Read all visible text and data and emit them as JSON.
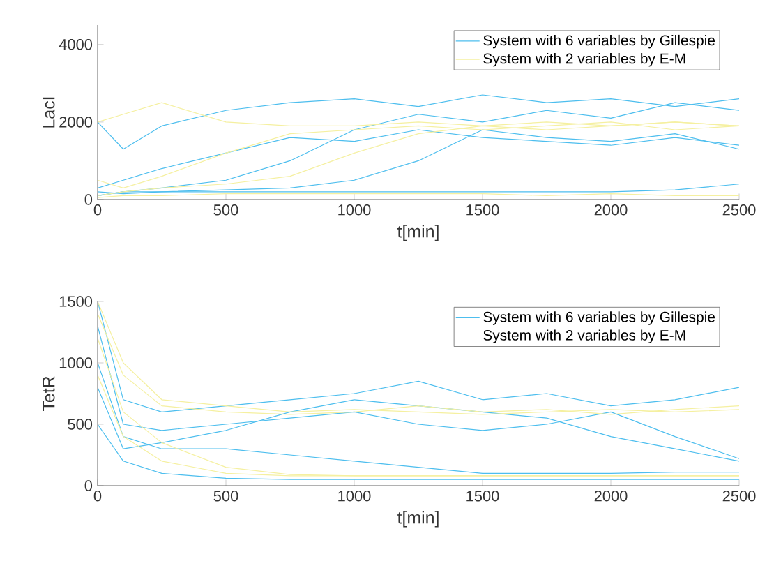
{
  "chart_data": [
    {
      "type": "line",
      "xlabel": "t[min]",
      "ylabel": "LacI",
      "xlim": [
        0,
        2500
      ],
      "ylim": [
        0,
        4500
      ],
      "xticks": [
        0,
        500,
        1000,
        1500,
        2000,
        2500
      ],
      "yticks": [
        0,
        2000,
        4000
      ],
      "legend": "top right",
      "grid": false,
      "x": [
        0,
        100,
        250,
        500,
        750,
        1000,
        1250,
        1500,
        1750,
        2000,
        2250,
        2500
      ],
      "series": [
        {
          "name": "System with 6 variables by Gillespie",
          "color": "#4dbeee",
          "values": [
            2000,
            1300,
            1900,
            2300,
            2500,
            2600,
            2400,
            2700,
            2500,
            2600,
            2400,
            2600
          ]
        },
        {
          "color": "#4dbeee",
          "values": [
            300,
            500,
            800,
            1200,
            1600,
            1500,
            1800,
            1600,
            1500,
            1400,
            1600,
            1400
          ]
        },
        {
          "color": "#4dbeee",
          "values": [
            100,
            200,
            300,
            500,
            1000,
            1800,
            2200,
            2000,
            2300,
            2100,
            2500,
            2300
          ]
        },
        {
          "color": "#4dbeee",
          "values": [
            200,
            150,
            200,
            250,
            300,
            500,
            1000,
            1800,
            1600,
            1500,
            1700,
            1300
          ]
        },
        {
          "color": "#4dbeee",
          "values": [
            100,
            200,
            200,
            200,
            200,
            200,
            200,
            200,
            200,
            200,
            250,
            400
          ]
        },
        {
          "name": "System with 2 variables by E-M",
          "color": "#f5f0a0",
          "values": [
            2000,
            2200,
            2500,
            2000,
            1900,
            1900,
            2000,
            1900,
            2000,
            1900,
            2000,
            1900
          ]
        },
        {
          "color": "#f5f0a0",
          "values": [
            500,
            300,
            600,
            1200,
            1700,
            1800,
            1900,
            1800,
            1900,
            2000,
            1800,
            1900
          ]
        },
        {
          "color": "#f5f0a0",
          "values": [
            100,
            200,
            300,
            400,
            600,
            1200,
            1700,
            1900,
            1800,
            1900,
            2000,
            1900
          ]
        },
        {
          "color": "#f5f0a0",
          "values": [
            50,
            100,
            100,
            150,
            150,
            150,
            150,
            150,
            100,
            150,
            100,
            100
          ]
        }
      ]
    },
    {
      "type": "line",
      "xlabel": "t[min]",
      "ylabel": "TetR",
      "xlim": [
        0,
        2500
      ],
      "ylim": [
        0,
        1500
      ],
      "xticks": [
        0,
        500,
        1000,
        1500,
        2000,
        2500
      ],
      "yticks": [
        0,
        500,
        1000,
        1500
      ],
      "legend": "top right",
      "grid": false,
      "x": [
        0,
        100,
        250,
        500,
        750,
        1000,
        1250,
        1500,
        1750,
        2000,
        2250,
        2500
      ],
      "series": [
        {
          "name": "System with 6 variables by Gillespie",
          "color": "#4dbeee",
          "values": [
            1500,
            700,
            600,
            650,
            700,
            750,
            850,
            700,
            750,
            650,
            700,
            800
          ]
        },
        {
          "color": "#4dbeee",
          "values": [
            1300,
            500,
            450,
            500,
            550,
            600,
            500,
            450,
            500,
            600,
            400,
            220
          ]
        },
        {
          "color": "#4dbeee",
          "values": [
            1000,
            400,
            300,
            300,
            250,
            200,
            150,
            100,
            100,
            100,
            110,
            110
          ]
        },
        {
          "color": "#4dbeee",
          "values": [
            800,
            300,
            350,
            450,
            600,
            700,
            650,
            600,
            550,
            400,
            300,
            200
          ]
        },
        {
          "color": "#4dbeee",
          "values": [
            500,
            200,
            100,
            60,
            50,
            50,
            50,
            50,
            50,
            50,
            50,
            50
          ]
        },
        {
          "name": "System with 2 variables by E-M",
          "color": "#f5f0a0",
          "values": [
            1500,
            1000,
            700,
            650,
            600,
            620,
            600,
            580,
            600,
            620,
            600,
            620
          ]
        },
        {
          "color": "#f5f0a0",
          "values": [
            1200,
            600,
            350,
            150,
            90,
            80,
            80,
            80,
            80,
            80,
            80,
            80
          ]
        },
        {
          "color": "#f5f0a0",
          "values": [
            900,
            400,
            200,
            100,
            80,
            80,
            80,
            80,
            80,
            80,
            80,
            80
          ]
        },
        {
          "color": "#f5f0a0",
          "values": [
            1400,
            900,
            650,
            600,
            580,
            600,
            650,
            600,
            620,
            580,
            620,
            650
          ]
        }
      ]
    }
  ]
}
